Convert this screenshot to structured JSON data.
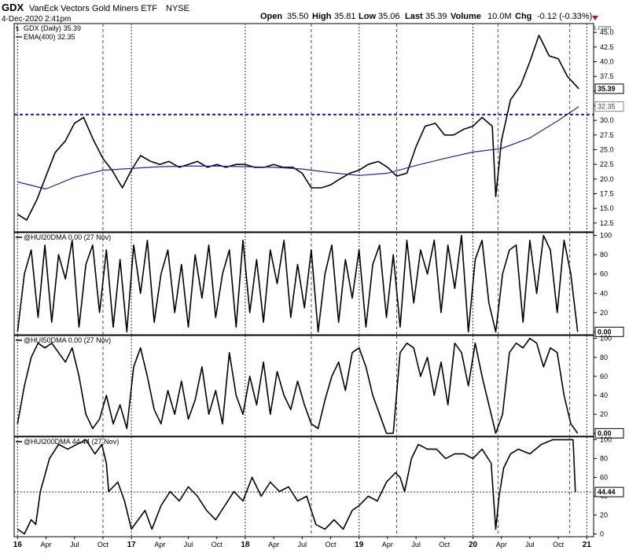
{
  "header": {
    "symbol": "GDX",
    "name": "VanEck Vectors Gold Miners ETF",
    "exchange": "NYSE",
    "date": "4-Dec-2020 2:41pm",
    "open_label": "Open",
    "open_value": "35.50",
    "high_label": "High",
    "high_value": "35.81",
    "low_label": "Low",
    "low_value": "35.06",
    "last_label": "Last",
    "last_value": "35.39",
    "volume_label": "Volume",
    "volume_value": "10.0M",
    "chg_label": "Chg",
    "chg_value": "-0.12 (-0.33%)",
    "watermark": "© StockCharts.com"
  },
  "chart_data": [
    {
      "type": "line",
      "panel": "price",
      "legend": [
        {
          "text": "GDX (Daily) 35.39"
        },
        {
          "text": "EMA(400) 32.35"
        }
      ],
      "y_ticks": [
        12.5,
        15.0,
        17.5,
        20.0,
        22.5,
        25.0,
        27.5,
        30.0,
        32.5,
        35.0,
        37.5,
        40.0,
        42.5,
        45.0
      ],
      "y_tick_labels": [
        "12.5",
        "15.0",
        "17.5",
        "20.0",
        "22.5",
        "25.0",
        "27.5",
        "30.0",
        "32.5",
        "35.0",
        "37.5",
        "40.0",
        "42.5",
        "45.0"
      ],
      "ylim": [
        11,
        46.5
      ],
      "markers": [
        {
          "value": 35.39,
          "label": "35.39",
          "style": "dark"
        },
        {
          "value": 32.35,
          "label": "32.35",
          "style": "light"
        }
      ],
      "hline": 31.0,
      "series": [
        {
          "name": "GDX",
          "color": "#000000",
          "x": [
            2016.0,
            2016.08,
            2016.17,
            2016.25,
            2016.33,
            2016.42,
            2016.5,
            2016.58,
            2016.67,
            2016.75,
            2016.83,
            2016.92,
            2017.0,
            2017.08,
            2017.17,
            2017.25,
            2017.33,
            2017.42,
            2017.5,
            2017.58,
            2017.67,
            2017.75,
            2017.83,
            2017.92,
            2018.0,
            2018.08,
            2018.17,
            2018.25,
            2018.33,
            2018.42,
            2018.5,
            2018.58,
            2018.67,
            2018.75,
            2018.83,
            2018.92,
            2019.0,
            2019.08,
            2019.17,
            2019.25,
            2019.33,
            2019.42,
            2019.5,
            2019.58,
            2019.67,
            2019.75,
            2019.83,
            2019.92,
            2020.0,
            2020.08,
            2020.17,
            2020.2,
            2020.23,
            2020.25,
            2020.33,
            2020.42,
            2020.5,
            2020.58,
            2020.67,
            2020.75,
            2020.83,
            2020.93
          ],
          "values": [
            14.0,
            13.0,
            16.5,
            20.5,
            24.5,
            26.5,
            29.5,
            30.5,
            26.5,
            23.5,
            21.5,
            18.5,
            21.5,
            24.0,
            23.0,
            22.5,
            23.0,
            22.0,
            22.5,
            23.0,
            22.0,
            22.5,
            22.0,
            22.5,
            22.5,
            22.0,
            22.0,
            22.5,
            22.0,
            22.0,
            21.0,
            18.5,
            18.5,
            19.0,
            20.0,
            21.0,
            21.5,
            22.5,
            23.0,
            22.0,
            20.5,
            21.0,
            25.5,
            29.0,
            29.5,
            27.5,
            27.5,
            28.5,
            29.0,
            30.5,
            29.0,
            17.0,
            22.5,
            26.5,
            33.5,
            36.0,
            40.0,
            44.5,
            41.0,
            40.5,
            37.5,
            35.39
          ]
        },
        {
          "name": "EMA(400)",
          "color": "#1a2a8c",
          "x": [
            2016.0,
            2016.25,
            2016.5,
            2016.75,
            2017.0,
            2017.25,
            2017.5,
            2017.75,
            2018.0,
            2018.25,
            2018.5,
            2018.75,
            2019.0,
            2019.25,
            2019.5,
            2019.75,
            2020.0,
            2020.25,
            2020.5,
            2020.75,
            2020.93
          ],
          "values": [
            19.5,
            18.3,
            20.3,
            21.5,
            21.8,
            22.1,
            22.2,
            22.2,
            22.1,
            22.0,
            21.7,
            21.1,
            20.6,
            21.0,
            22.3,
            23.5,
            24.6,
            25.2,
            27.0,
            30.0,
            32.35
          ]
        }
      ]
    },
    {
      "type": "line",
      "panel": "indicator",
      "legend": [
        {
          "text": "@HUI20DMA 0.00 (27 Nov)"
        }
      ],
      "y_ticks": [
        0,
        20,
        40,
        60,
        80,
        100
      ],
      "ylim": [
        -3,
        103
      ],
      "marker": {
        "value": 0.0,
        "label": "0.00"
      },
      "series": [
        {
          "name": "@HUI20DMA",
          "color": "#000000",
          "x": [
            2016.0,
            2016.06,
            2016.12,
            2016.18,
            2016.24,
            2016.3,
            2016.36,
            2016.42,
            2016.48,
            2016.54,
            2016.6,
            2016.66,
            2016.72,
            2016.78,
            2016.84,
            2016.9,
            2016.96,
            2017.02,
            2017.08,
            2017.14,
            2017.2,
            2017.26,
            2017.32,
            2017.38,
            2017.44,
            2017.5,
            2017.56,
            2017.62,
            2017.68,
            2017.74,
            2017.8,
            2017.86,
            2017.92,
            2017.98,
            2018.04,
            2018.1,
            2018.16,
            2018.22,
            2018.28,
            2018.34,
            2018.4,
            2018.46,
            2018.52,
            2018.58,
            2018.64,
            2018.7,
            2018.76,
            2018.82,
            2018.88,
            2018.94,
            2019.0,
            2019.06,
            2019.12,
            2019.18,
            2019.24,
            2019.3,
            2019.36,
            2019.42,
            2019.48,
            2019.54,
            2019.6,
            2019.66,
            2019.72,
            2019.78,
            2019.84,
            2019.9,
            2019.96,
            2020.02,
            2020.08,
            2020.14,
            2020.2,
            2020.26,
            2020.32,
            2020.38,
            2020.44,
            2020.5,
            2020.56,
            2020.62,
            2020.68,
            2020.74,
            2020.8,
            2020.86,
            2020.92
          ],
          "values": [
            0,
            60,
            85,
            15,
            90,
            10,
            80,
            55,
            95,
            5,
            70,
            90,
            20,
            85,
            5,
            75,
            0,
            90,
            40,
            95,
            10,
            60,
            85,
            20,
            70,
            5,
            80,
            35,
            90,
            15,
            60,
            85,
            5,
            95,
            20,
            75,
            10,
            85,
            50,
            95,
            15,
            70,
            25,
            85,
            0,
            60,
            90,
            10,
            75,
            35,
            85,
            5,
            70,
            90,
            15,
            80,
            5,
            95,
            30,
            85,
            60,
            95,
            20,
            90,
            45,
            100,
            0,
            75,
            95,
            30,
            0,
            60,
            85,
            90,
            10,
            95,
            40,
            100,
            85,
            20,
            95,
            60,
            0
          ]
        }
      ]
    },
    {
      "type": "line",
      "panel": "indicator",
      "legend": [
        {
          "text": "@HUI50DMA 0.00 (27 Nov)"
        }
      ],
      "y_ticks": [
        0,
        20,
        40,
        60,
        80,
        100
      ],
      "ylim": [
        -3,
        103
      ],
      "marker": {
        "value": 0.0,
        "label": "0.00"
      },
      "series": [
        {
          "name": "@HUI50DMA",
          "color": "#000000",
          "x": [
            2016.0,
            2016.06,
            2016.12,
            2016.18,
            2016.24,
            2016.3,
            2016.36,
            2016.42,
            2016.48,
            2016.54,
            2016.6,
            2016.66,
            2016.72,
            2016.78,
            2016.84,
            2016.9,
            2016.96,
            2017.02,
            2017.08,
            2017.14,
            2017.2,
            2017.26,
            2017.32,
            2017.38,
            2017.44,
            2017.5,
            2017.56,
            2017.62,
            2017.68,
            2017.74,
            2017.8,
            2017.86,
            2017.92,
            2017.98,
            2018.04,
            2018.1,
            2018.16,
            2018.22,
            2018.28,
            2018.34,
            2018.4,
            2018.46,
            2018.52,
            2018.58,
            2018.64,
            2018.7,
            2018.76,
            2018.82,
            2018.88,
            2018.94,
            2019.0,
            2019.06,
            2019.12,
            2019.18,
            2019.24,
            2019.3,
            2019.36,
            2019.42,
            2019.48,
            2019.54,
            2019.6,
            2019.66,
            2019.72,
            2019.78,
            2019.84,
            2019.9,
            2019.96,
            2020.02,
            2020.08,
            2020.14,
            2020.2,
            2020.26,
            2020.32,
            2020.38,
            2020.44,
            2020.5,
            2020.56,
            2020.62,
            2020.68,
            2020.74,
            2020.8,
            2020.86,
            2020.92
          ],
          "values": [
            10,
            50,
            80,
            95,
            90,
            95,
            85,
            75,
            90,
            60,
            20,
            5,
            15,
            40,
            10,
            30,
            5,
            70,
            90,
            60,
            25,
            10,
            45,
            20,
            55,
            15,
            35,
            70,
            20,
            45,
            10,
            85,
            40,
            20,
            60,
            30,
            75,
            20,
            65,
            40,
            25,
            55,
            30,
            10,
            5,
            35,
            60,
            75,
            45,
            85,
            90,
            70,
            40,
            20,
            0,
            0,
            85,
            95,
            90,
            60,
            80,
            40,
            75,
            30,
            95,
            85,
            50,
            95,
            60,
            30,
            0,
            20,
            85,
            95,
            90,
            100,
            95,
            70,
            90,
            85,
            40,
            10,
            0
          ]
        }
      ]
    },
    {
      "type": "line",
      "panel": "indicator",
      "legend": [
        {
          "text": "@HUI200DMA 44.44 (27 Nov)"
        }
      ],
      "y_ticks": [
        0,
        20,
        40,
        60,
        80,
        100
      ],
      "ylim": [
        -3,
        103
      ],
      "marker": {
        "value": 44.44,
        "label": "44.44"
      },
      "hline": 44.44,
      "series": [
        {
          "name": "@HUI200DMA",
          "color": "#000000",
          "x": [
            2016.0,
            2016.06,
            2016.12,
            2016.16,
            2016.2,
            2016.28,
            2016.36,
            2016.44,
            2016.52,
            2016.6,
            2016.68,
            2016.74,
            2016.78,
            2016.8,
            2016.88,
            2016.94,
            2017.0,
            2017.06,
            2017.12,
            2017.18,
            2017.26,
            2017.34,
            2017.42,
            2017.5,
            2017.58,
            2017.66,
            2017.74,
            2017.82,
            2017.9,
            2017.98,
            2018.06,
            2018.14,
            2018.22,
            2018.3,
            2018.38,
            2018.46,
            2018.54,
            2018.62,
            2018.7,
            2018.78,
            2018.86,
            2018.94,
            2019.0,
            2019.08,
            2019.16,
            2019.24,
            2019.32,
            2019.36,
            2019.4,
            2019.46,
            2019.52,
            2019.6,
            2019.68,
            2019.76,
            2019.84,
            2019.92,
            2020.0,
            2020.08,
            2020.16,
            2020.2,
            2020.23,
            2020.27,
            2020.33,
            2020.4,
            2020.5,
            2020.6,
            2020.7,
            2020.78,
            2020.84,
            2020.88,
            2020.9
          ],
          "values": [
            5,
            0,
            15,
            10,
            45,
            80,
            95,
            90,
            95,
            100,
            85,
            95,
            75,
            45,
            55,
            35,
            5,
            15,
            25,
            5,
            30,
            45,
            35,
            50,
            40,
            25,
            15,
            30,
            45,
            35,
            60,
            40,
            55,
            45,
            50,
            35,
            40,
            10,
            5,
            15,
            5,
            25,
            30,
            40,
            35,
            55,
            65,
            60,
            45,
            80,
            95,
            90,
            90,
            80,
            85,
            85,
            80,
            90,
            75,
            5,
            40,
            70,
            85,
            90,
            85,
            95,
            100,
            100,
            100,
            100,
            44.44
          ]
        }
      ]
    }
  ],
  "x_axis": {
    "ticks": [
      {
        "x": 2016.0,
        "label": "16"
      },
      {
        "x": 2016.25,
        "label": "Apr"
      },
      {
        "x": 2016.5,
        "label": "Jul"
      },
      {
        "x": 2016.75,
        "label": "Oct"
      },
      {
        "x": 2017.0,
        "label": "17"
      },
      {
        "x": 2017.25,
        "label": "Apr"
      },
      {
        "x": 2017.5,
        "label": "Jul"
      },
      {
        "x": 2017.75,
        "label": "Oct"
      },
      {
        "x": 2018.0,
        "label": "18"
      },
      {
        "x": 2018.25,
        "label": "Apr"
      },
      {
        "x": 2018.5,
        "label": "Jul"
      },
      {
        "x": 2018.75,
        "label": "Oct"
      },
      {
        "x": 2019.0,
        "label": "19"
      },
      {
        "x": 2019.25,
        "label": "Apr"
      },
      {
        "x": 2019.5,
        "label": "Jul"
      },
      {
        "x": 2019.75,
        "label": "Oct"
      },
      {
        "x": 2020.0,
        "label": "20"
      },
      {
        "x": 2020.25,
        "label": "Apr"
      },
      {
        "x": 2020.5,
        "label": "Jul"
      },
      {
        "x": 2020.75,
        "label": "Oct"
      },
      {
        "x": 2021.0,
        "label": "21"
      }
    ],
    "range": [
      2015.97,
      2021.06
    ],
    "year_lines": [
      2016.0,
      2017.0,
      2018.0,
      2019.0,
      2020.0,
      2021.0
    ],
    "event_lines": [
      2016.75,
      2018.58,
      2019.33,
      2020.22,
      2020.85
    ]
  }
}
